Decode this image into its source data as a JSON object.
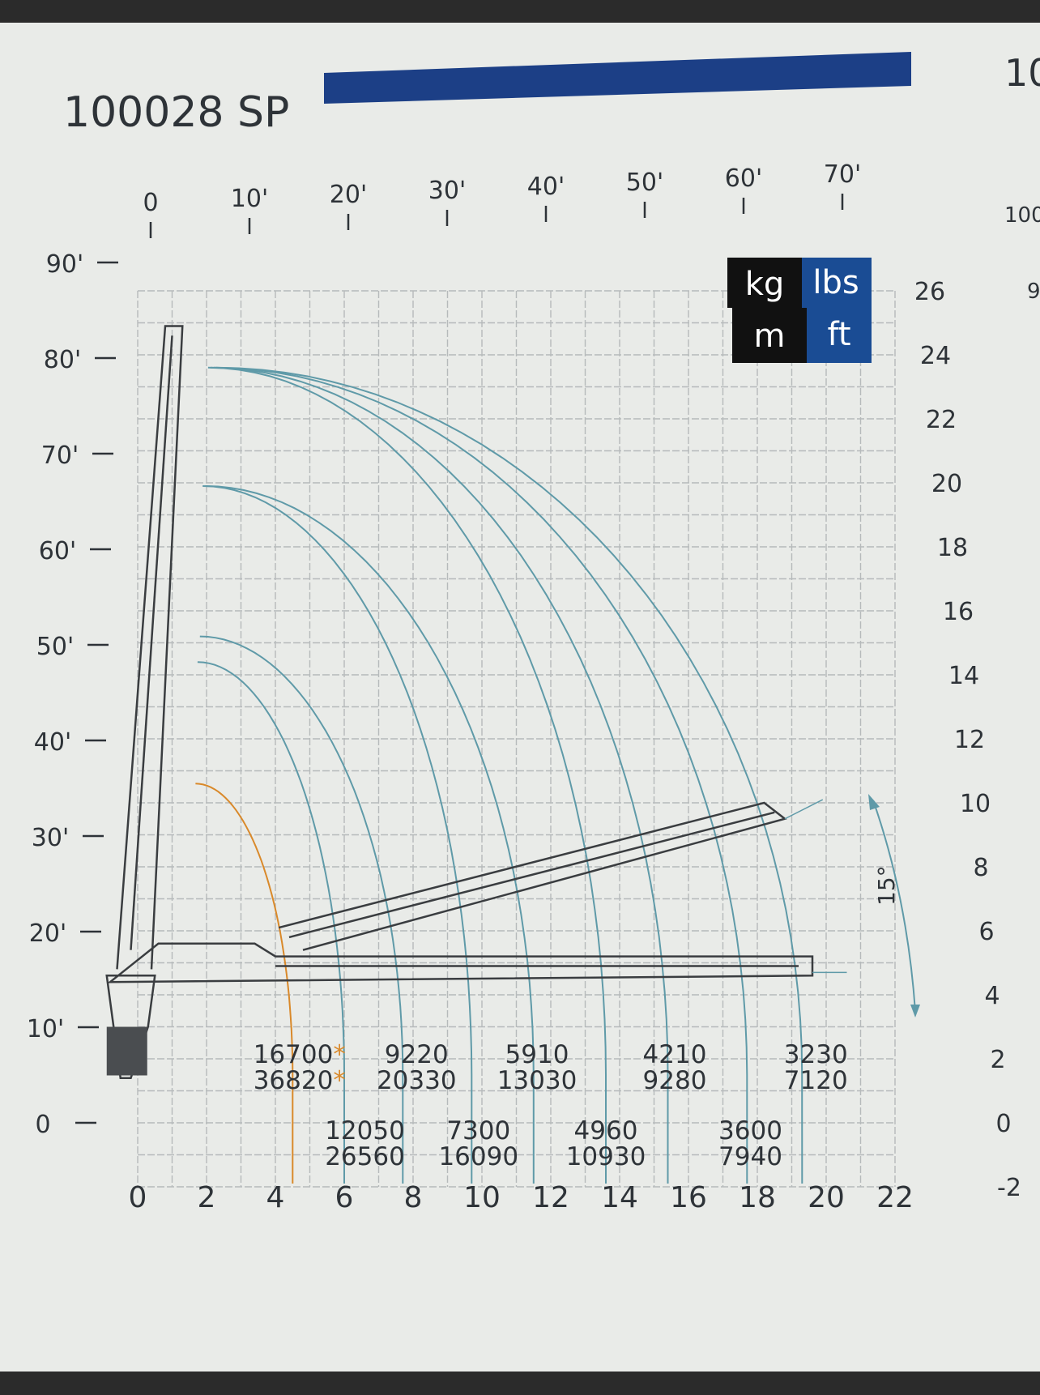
{
  "header": {
    "title": "100028 SP",
    "right_cut_text": "10",
    "right_cut_small_1": "100",
    "right_cut_small_2": "9",
    "bar_color": "#1c3f86"
  },
  "legend": {
    "kg": "kg",
    "lbs": "lbs",
    "m": "m",
    "ft": "ft",
    "black": "#111111",
    "blue": "#1a4c94"
  },
  "chart_data": {
    "type": "line",
    "x_axis": {
      "unit": "m",
      "ticks": [
        "0",
        "2",
        "4",
        "6",
        "8",
        "10",
        "12",
        "14",
        "16",
        "18",
        "20",
        "22"
      ],
      "range": [
        0,
        22
      ]
    },
    "y_axis_right": {
      "unit": "m",
      "ticks": [
        "26",
        "24",
        "22",
        "20",
        "18",
        "16",
        "14",
        "12",
        "10",
        "8",
        "6",
        "4",
        "2",
        "0",
        "-2"
      ],
      "range": [
        -2,
        26
      ]
    },
    "x_axis_top_ft": {
      "unit": "ft",
      "ticks": [
        "0",
        "10'",
        "20'",
        "30'",
        "40'",
        "50'",
        "60'",
        "70'"
      ]
    },
    "y_axis_left_ft": {
      "unit": "ft",
      "ticks": [
        "90'",
        "80'",
        "70'",
        "60'",
        "50'",
        "40'",
        "30'",
        "20'",
        "10'",
        "0"
      ]
    },
    "angle_label": "15°",
    "load_points": [
      {
        "reach_m": 4.7,
        "kg": "16700*",
        "lbs": "36820*",
        "row": "upper"
      },
      {
        "reach_m": 6.6,
        "kg": "12050",
        "lbs": "26560",
        "row": "lower"
      },
      {
        "reach_m": 8.1,
        "kg": "9220",
        "lbs": "20330",
        "row": "upper"
      },
      {
        "reach_m": 9.9,
        "kg": "7300",
        "lbs": "16090",
        "row": "lower"
      },
      {
        "reach_m": 11.6,
        "kg": "5910",
        "lbs": "13030",
        "row": "upper"
      },
      {
        "reach_m": 13.6,
        "kg": "4960",
        "lbs": "10930",
        "row": "lower"
      },
      {
        "reach_m": 15.6,
        "kg": "4210",
        "lbs": "9280",
        "row": "upper"
      },
      {
        "reach_m": 17.8,
        "kg": "3600",
        "lbs": "7940",
        "row": "lower"
      },
      {
        "reach_m": 19.7,
        "kg": "3230",
        "lbs": "7120",
        "row": "upper"
      }
    ],
    "envelopes": [
      {
        "reach_m": 4.5,
        "max_height_m": 10.6,
        "color": "#d9892a"
      },
      {
        "reach_m": 6.0,
        "max_height_m": 14.4,
        "color": "#5f9aa8"
      },
      {
        "reach_m": 7.7,
        "max_height_m": 15.2,
        "color": "#5f9aa8"
      },
      {
        "reach_m": 9.7,
        "max_height_m": 19.9,
        "color": "#5f9aa8"
      },
      {
        "reach_m": 11.5,
        "max_height_m": 19.9,
        "color": "#5f9aa8"
      },
      {
        "reach_m": 13.6,
        "max_height_m": 23.6,
        "color": "#5f9aa8"
      },
      {
        "reach_m": 15.4,
        "max_height_m": 23.6,
        "color": "#5f9aa8"
      },
      {
        "reach_m": 17.7,
        "max_height_m": 23.6,
        "color": "#5f9aa8"
      },
      {
        "reach_m": 19.3,
        "max_height_m": 23.6,
        "color": "#5f9aa8"
      }
    ],
    "grid": true
  }
}
